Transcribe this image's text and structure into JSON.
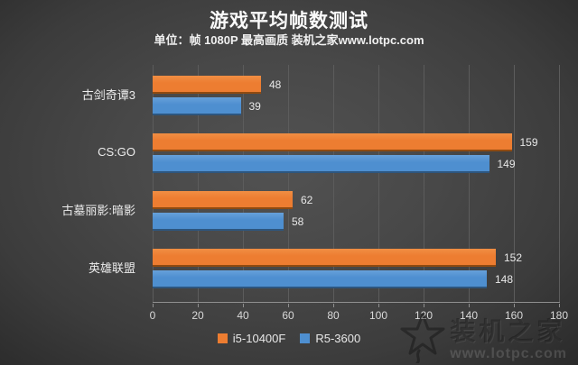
{
  "header": {
    "title": "游戏平均帧数测试",
    "subtitle": "单位：帧  1080P 最高画质 装机之家www.lotpc.com"
  },
  "chart_data": {
    "type": "bar",
    "orientation": "horizontal",
    "title": "游戏平均帧数测试",
    "subtitle": "单位：帧 1080P 最高画质 装机之家www.lotpc.com",
    "categories": [
      "古剑奇谭3",
      "CS:GO",
      "古墓丽影:暗影",
      "英雄联盟"
    ],
    "series": [
      {
        "name": "i5-10400F",
        "values": [
          48,
          159,
          62,
          152
        ],
        "color": "#ED7D31",
        "color_top": "#F18E43",
        "color_edge": "#8F4A10"
      },
      {
        "name": "R5-3600",
        "values": [
          39,
          149,
          58,
          148
        ],
        "color": "#4E8FD0",
        "color_top": "#66A0DA",
        "color_edge": "#2D567F"
      }
    ],
    "xlabel": "",
    "ylabel": "",
    "xlim": [
      0,
      180
    ],
    "xticks": [
      0,
      20,
      40,
      60,
      80,
      100,
      120,
      140,
      160,
      180
    ],
    "grid": true,
    "legend_position": "bottom",
    "value_labels": true
  },
  "watermark": {
    "brand": "装机之家",
    "url": "www.lotpc.com"
  },
  "colors": {
    "background_center": "#4e4e4e",
    "background_edge": "#2a2a2a",
    "gridline": "#5c5c5c",
    "axis_line": "#8f8f8f",
    "title_text": "#fafafa",
    "label_text": "#ececec",
    "tick_text": "#d9d9d9"
  }
}
